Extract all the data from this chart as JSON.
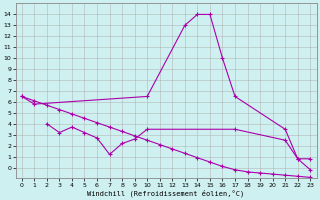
{
  "xlabel": "Windchill (Refroidissement éolien,°C)",
  "bg_color": "#cff0f0",
  "line_color": "#aa00aa",
  "grid_color": "#aaaaaa",
  "ylim": [
    -1,
    15
  ],
  "xlim": [
    -0.5,
    23.5
  ],
  "yticks": [
    0,
    1,
    2,
    3,
    4,
    5,
    6,
    7,
    8,
    9,
    10,
    11,
    12,
    13,
    14
  ],
  "xticks": [
    0,
    1,
    2,
    3,
    4,
    5,
    6,
    7,
    8,
    9,
    10,
    11,
    12,
    13,
    14,
    15,
    16,
    17,
    18,
    19,
    20,
    21,
    22,
    23
  ],
  "curve_top_x": [
    0,
    1,
    10,
    13,
    14,
    15,
    16,
    17,
    21,
    22,
    23
  ],
  "curve_top_y": [
    6.5,
    5.8,
    6.5,
    13.0,
    14.0,
    14.0,
    10.0,
    6.5,
    3.5,
    0.8,
    -0.2
  ],
  "curve_diag_x": [
    0,
    1,
    2,
    3,
    4,
    5,
    6,
    7,
    8,
    9,
    10,
    11,
    12,
    13,
    14,
    15,
    16,
    17,
    18,
    19,
    20,
    21,
    22,
    23
  ],
  "curve_diag_y": [
    6.5,
    6.1,
    5.7,
    5.3,
    4.9,
    4.5,
    4.1,
    3.7,
    3.3,
    2.9,
    2.5,
    2.1,
    1.7,
    1.3,
    0.9,
    0.5,
    0.1,
    -0.2,
    -0.4,
    -0.5,
    -0.6,
    -0.7,
    -0.8,
    -0.9
  ],
  "curve_bot_x": [
    2,
    3,
    4,
    5,
    6,
    7,
    8,
    9,
    10,
    17,
    21,
    22,
    23
  ],
  "curve_bot_y": [
    4.0,
    3.2,
    3.7,
    3.2,
    2.7,
    1.2,
    2.2,
    2.6,
    3.5,
    3.5,
    2.5,
    0.8,
    0.8
  ]
}
